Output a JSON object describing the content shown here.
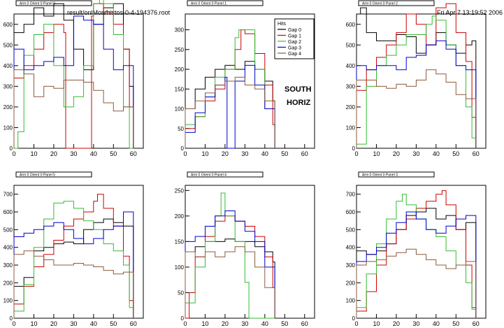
{
  "header": {
    "file": "result/onlMon/histos-0-4-194376.root",
    "date": "Fri Apr  7 13:19:52 2006"
  },
  "legend": {
    "title": "Hits",
    "entries": [
      "Gap 0",
      "Gap 1",
      "Gap 2",
      "Gap 3",
      "Gap 4"
    ]
  },
  "labels": {
    "south": "SOUTH",
    "horiz": "HORIZ"
  },
  "colors": [
    "#000000",
    "#cc0000",
    "#33bb33",
    "#0000cc",
    "#8b5a3c"
  ],
  "chart_data": [
    {
      "type": "line",
      "title": "Arm 0 Orient 0 Panel 0",
      "xlim": [
        0,
        65
      ],
      "ylim": [
        0,
        650
      ],
      "xticks": [
        0,
        10,
        20,
        30,
        40,
        50,
        60
      ],
      "yticks": [
        0,
        100,
        200,
        300,
        400,
        500,
        600
      ],
      "series": [
        {
          "x": [
            0,
            5,
            10,
            15,
            20,
            25,
            30,
            35,
            40,
            45,
            50,
            55,
            58,
            60
          ],
          "y": [
            560,
            600,
            680,
            640,
            700,
            620,
            480,
            380,
            600,
            680,
            700,
            480,
            300,
            0
          ]
        },
        {
          "x": [
            0,
            5,
            10,
            15,
            20,
            25,
            26,
            30,
            35,
            39,
            40,
            45,
            50,
            55,
            58,
            60
          ],
          "y": [
            340,
            400,
            480,
            560,
            600,
            560,
            0,
            0,
            0,
            640,
            700,
            660,
            600,
            480,
            200,
            0
          ]
        },
        {
          "x": [
            0,
            2,
            5,
            10,
            15,
            20,
            25,
            30,
            35,
            40,
            43,
            45,
            50,
            55,
            58,
            60
          ],
          "y": [
            0,
            80,
            450,
            550,
            600,
            400,
            200,
            250,
            400,
            700,
            760,
            700,
            550,
            200,
            0,
            0
          ]
        },
        {
          "x": [
            0,
            5,
            10,
            15,
            20,
            25,
            30,
            35,
            40,
            45,
            50,
            55,
            60
          ],
          "y": [
            480,
            380,
            400,
            420,
            440,
            400,
            640,
            620,
            600,
            480,
            380,
            400,
            0
          ]
        },
        {
          "x": [
            0,
            5,
            10,
            15,
            20,
            25,
            30,
            35,
            40,
            45,
            50,
            55,
            60
          ],
          "y": [
            380,
            360,
            250,
            300,
            290,
            330,
            330,
            320,
            280,
            220,
            180,
            200,
            0
          ]
        }
      ]
    },
    {
      "type": "line",
      "title": "Arm 0 Orient 0 Panel 1",
      "xlim": [
        0,
        65
      ],
      "ylim": [
        0,
        340
      ],
      "xticks": [
        0,
        10,
        20,
        30,
        40,
        50,
        60
      ],
      "yticks": [
        0,
        50,
        100,
        150,
        200,
        250,
        300
      ],
      "series": [
        {
          "x": [
            0,
            5,
            10,
            15,
            20,
            25,
            30,
            35,
            40,
            44,
            45
          ],
          "y": [
            100,
            150,
            180,
            200,
            210,
            200,
            220,
            200,
            170,
            120,
            0
          ]
        },
        {
          "x": [
            0,
            5,
            10,
            15,
            20,
            25,
            28,
            30,
            35,
            40,
            44,
            45
          ],
          "y": [
            50,
            80,
            120,
            150,
            200,
            250,
            300,
            290,
            240,
            160,
            60,
            0
          ]
        },
        {
          "x": [
            0,
            5,
            10,
            15,
            20,
            25,
            27,
            30,
            35,
            40,
            45
          ],
          "y": [
            60,
            80,
            130,
            180,
            200,
            280,
            300,
            300,
            200,
            100,
            0
          ]
        },
        {
          "x": [
            0,
            5,
            10,
            15,
            20,
            21,
            23,
            25,
            30,
            35,
            40,
            45
          ],
          "y": [
            40,
            90,
            130,
            160,
            180,
            0,
            0,
            170,
            210,
            160,
            100,
            0
          ]
        },
        {
          "x": [
            0,
            5,
            10,
            15,
            20,
            25,
            30,
            35,
            40,
            45
          ],
          "y": [
            100,
            120,
            140,
            160,
            170,
            180,
            160,
            150,
            120,
            0
          ]
        }
      ]
    },
    {
      "type": "line",
      "title": "Arm 0 Orient 0 Panel 2",
      "xlim": [
        0,
        65
      ],
      "ylim": [
        0,
        650
      ],
      "xticks": [
        0,
        10,
        20,
        30,
        40,
        50,
        60
      ],
      "yticks": [
        0,
        100,
        200,
        300,
        400,
        500,
        600
      ],
      "series": [
        {
          "x": [
            0,
            2,
            5,
            10,
            15,
            20,
            25,
            30,
            35,
            40,
            45,
            50,
            55,
            58,
            60
          ],
          "y": [
            650,
            680,
            560,
            520,
            520,
            550,
            540,
            460,
            500,
            560,
            500,
            460,
            500,
            520,
            0
          ]
        },
        {
          "x": [
            0,
            5,
            10,
            15,
            20,
            25,
            30,
            35,
            40,
            45,
            50,
            55,
            58,
            60
          ],
          "y": [
            280,
            380,
            440,
            500,
            560,
            650,
            600,
            500,
            680,
            700,
            560,
            420,
            150,
            0
          ]
        },
        {
          "x": [
            0,
            5,
            10,
            15,
            20,
            25,
            30,
            35,
            38,
            40,
            45,
            50,
            55,
            58,
            60
          ],
          "y": [
            20,
            300,
            400,
            450,
            500,
            550,
            550,
            600,
            640,
            620,
            500,
            400,
            200,
            50,
            0
          ]
        },
        {
          "x": [
            0,
            5,
            10,
            15,
            20,
            25,
            30,
            35,
            40,
            45,
            50,
            55,
            60
          ],
          "y": [
            400,
            380,
            400,
            400,
            380,
            440,
            450,
            500,
            520,
            480,
            400,
            380,
            0
          ]
        },
        {
          "x": [
            0,
            5,
            10,
            15,
            20,
            25,
            30,
            35,
            40,
            45,
            50,
            55,
            60
          ],
          "y": [
            330,
            330,
            300,
            290,
            310,
            300,
            330,
            380,
            360,
            320,
            260,
            240,
            0
          ]
        }
      ]
    },
    {
      "type": "line",
      "title": "Arm 0 Orient 0 Panel 5",
      "xlim": [
        0,
        65
      ],
      "ylim": [
        0,
        750
      ],
      "xticks": [
        0,
        10,
        20,
        30,
        40,
        50,
        60
      ],
      "yticks": [
        0,
        100,
        200,
        300,
        400,
        500,
        600,
        700
      ],
      "series": [
        {
          "x": [
            0,
            5,
            10,
            15,
            20,
            25,
            30,
            35,
            40,
            45,
            50,
            55,
            60
          ],
          "y": [
            180,
            230,
            380,
            400,
            420,
            430,
            420,
            500,
            540,
            560,
            540,
            520,
            0
          ]
        },
        {
          "x": [
            0,
            5,
            10,
            15,
            20,
            25,
            30,
            35,
            40,
            42,
            45,
            50,
            55,
            58,
            60
          ],
          "y": [
            80,
            180,
            290,
            360,
            440,
            520,
            560,
            600,
            660,
            700,
            620,
            520,
            350,
            100,
            0
          ]
        },
        {
          "x": [
            0,
            5,
            10,
            15,
            20,
            25,
            30,
            35,
            40,
            45,
            50,
            55,
            58,
            60
          ],
          "y": [
            40,
            190,
            400,
            560,
            650,
            660,
            620,
            550,
            500,
            420,
            380,
            300,
            60,
            0
          ]
        },
        {
          "x": [
            0,
            5,
            10,
            15,
            20,
            25,
            30,
            35,
            40,
            45,
            50,
            55,
            60
          ],
          "y": [
            460,
            480,
            500,
            520,
            540,
            500,
            450,
            420,
            450,
            500,
            520,
            600,
            0
          ]
        },
        {
          "x": [
            0,
            5,
            10,
            15,
            20,
            25,
            30,
            35,
            40,
            45,
            50,
            55,
            60
          ],
          "y": [
            360,
            380,
            350,
            330,
            300,
            300,
            310,
            300,
            290,
            270,
            250,
            260,
            0
          ]
        }
      ]
    },
    {
      "type": "line",
      "title": "Arm 0 Orient 0 Panel 4",
      "xlim": [
        0,
        65
      ],
      "ylim": [
        0,
        260
      ],
      "xticks": [
        0,
        10,
        20,
        30,
        40,
        50,
        60
      ],
      "yticks": [
        0,
        50,
        100,
        150,
        200,
        250
      ],
      "series": [
        {
          "x": [
            0,
            5,
            10,
            15,
            20,
            25,
            30,
            35,
            40,
            44,
            45
          ],
          "y": [
            130,
            140,
            150,
            150,
            155,
            150,
            150,
            140,
            130,
            110,
            0
          ]
        },
        {
          "x": [
            0,
            2,
            5,
            10,
            15,
            20,
            25,
            30,
            35,
            40,
            44,
            45
          ],
          "y": [
            0,
            50,
            120,
            160,
            190,
            200,
            190,
            180,
            160,
            120,
            60,
            0
          ]
        },
        {
          "x": [
            0,
            5,
            10,
            15,
            18,
            20,
            25,
            30,
            32,
            45
          ],
          "y": [
            30,
            100,
            150,
            200,
            245,
            200,
            150,
            70,
            0,
            0
          ]
        },
        {
          "x": [
            0,
            5,
            10,
            15,
            20,
            25,
            30,
            35,
            40,
            45
          ],
          "y": [
            150,
            160,
            180,
            200,
            210,
            190,
            170,
            150,
            100,
            0
          ]
        },
        {
          "x": [
            0,
            5,
            10,
            15,
            20,
            25,
            30,
            35,
            40,
            45
          ],
          "y": [
            130,
            120,
            130,
            120,
            130,
            140,
            130,
            100,
            60,
            0
          ]
        }
      ]
    },
    {
      "type": "line",
      "title": "Arm 0 Orient 0 Panel 3",
      "xlim": [
        0,
        65
      ],
      "ylim": [
        0,
        750
      ],
      "xticks": [
        0,
        10,
        20,
        30,
        40,
        50,
        60
      ],
      "yticks": [
        0,
        100,
        200,
        300,
        400,
        500,
        600,
        700
      ],
      "series": [
        {
          "x": [
            0,
            5,
            10,
            15,
            20,
            25,
            30,
            35,
            40,
            45,
            50,
            55,
            60
          ],
          "y": [
            380,
            360,
            380,
            420,
            500,
            580,
            600,
            620,
            560,
            580,
            500,
            540,
            0
          ]
        },
        {
          "x": [
            0,
            5,
            10,
            15,
            20,
            25,
            30,
            35,
            40,
            43,
            45,
            50,
            55,
            58,
            60
          ],
          "y": [
            40,
            150,
            300,
            420,
            500,
            560,
            620,
            660,
            700,
            720,
            640,
            500,
            300,
            60,
            0
          ]
        },
        {
          "x": [
            0,
            5,
            10,
            15,
            20,
            23,
            25,
            30,
            35,
            40,
            45,
            50,
            55,
            58,
            60
          ],
          "y": [
            60,
            250,
            420,
            560,
            660,
            700,
            640,
            560,
            500,
            460,
            380,
            300,
            200,
            50,
            0
          ]
        },
        {
          "x": [
            0,
            5,
            10,
            15,
            20,
            25,
            30,
            35,
            40,
            45,
            50,
            55,
            60
          ],
          "y": [
            320,
            360,
            400,
            480,
            540,
            600,
            560,
            500,
            480,
            520,
            560,
            580,
            0
          ]
        },
        {
          "x": [
            0,
            5,
            10,
            15,
            20,
            25,
            30,
            35,
            40,
            45,
            50,
            55,
            60
          ],
          "y": [
            300,
            320,
            330,
            350,
            370,
            390,
            360,
            330,
            300,
            280,
            300,
            320,
            0
          ]
        }
      ]
    }
  ]
}
